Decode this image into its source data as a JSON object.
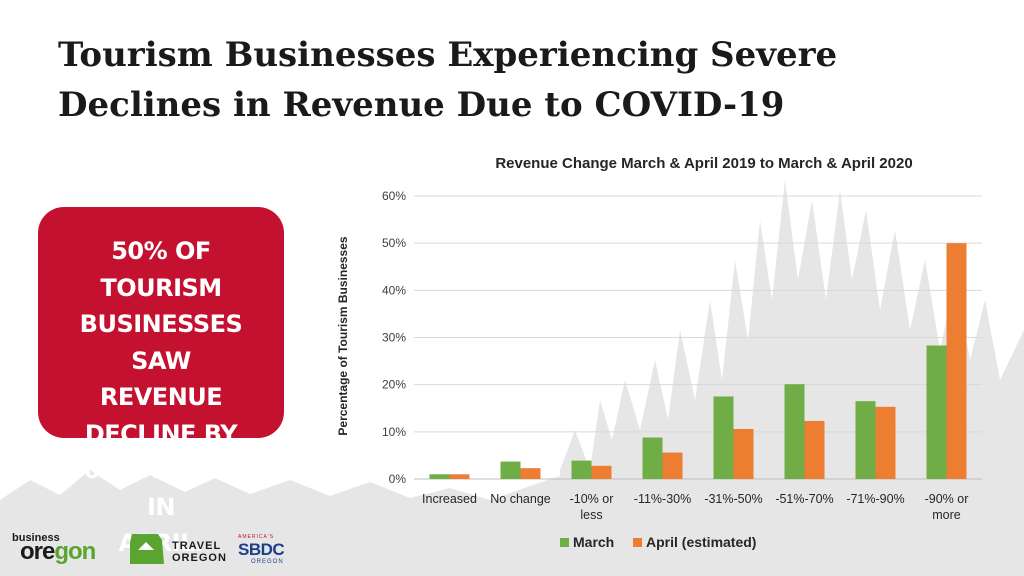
{
  "headline": {
    "line1": "Tourism Businesses Experiencing Severe",
    "line2": "Declines in Revenue Due to COVID-19"
  },
  "callout": {
    "text": "50% of Tourism Businesses Saw Revenue Decline by 90% or More in April.",
    "lines": [
      "50% of Tourism",
      "Businesses Saw",
      "Revenue Decline by",
      "90% or More in",
      "April."
    ],
    "background": "#c4112f"
  },
  "chart_data": {
    "type": "bar",
    "title": "Revenue Change March & April 2019 to March & April 2020",
    "ylabel": "Percentage of Tourism Businesses",
    "xlabel": "",
    "ylim": [
      0,
      60
    ],
    "yticks": [
      "0%",
      "10%",
      "20%",
      "30%",
      "40%",
      "50%",
      "60%"
    ],
    "grid": true,
    "legend_position": "bottom",
    "categories": [
      [
        "Increased"
      ],
      [
        "No change"
      ],
      [
        "-10% or",
        "less"
      ],
      [
        "-11%-30%"
      ],
      [
        "-31%-50%"
      ],
      [
        "-51%-70%"
      ],
      [
        "-71%-90%"
      ],
      [
        "-90% or",
        "more"
      ]
    ],
    "series": [
      {
        "name": "March",
        "color": "#70ad47",
        "values": [
          1,
          3.7,
          3.9,
          8.8,
          17.5,
          20.1,
          16.5,
          28.3
        ]
      },
      {
        "name": "April (estimated)",
        "color": "#ed7d31",
        "values": [
          1,
          2.3,
          2.8,
          5.6,
          10.6,
          12.3,
          15.3,
          50
        ]
      }
    ]
  },
  "logos": {
    "business_oregon_small": "business",
    "business_oregon_big_a": "ore",
    "business_oregon_big_b": "gon",
    "travel_oregon_line1": "TRAVEL",
    "travel_oregon_line2": "OREGON",
    "sbdc_top": "AMERICA'S",
    "sbdc_main": "SBDC",
    "sbdc_sub": "OREGON"
  }
}
